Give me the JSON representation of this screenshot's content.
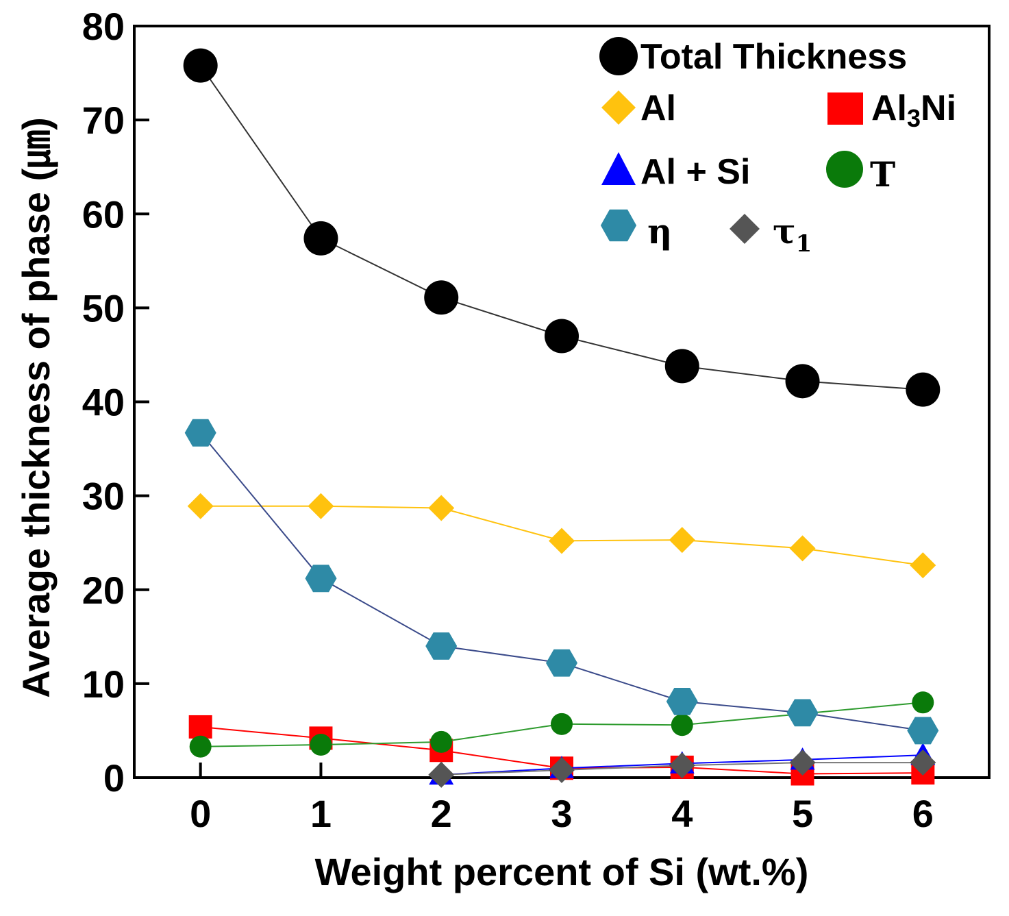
{
  "chart_data": {
    "type": "line",
    "title": "",
    "xlabel": "Weight percent of Si (wt.%)",
    "ylabel": "Average thickness of phase (㎛)",
    "xlim": [
      -0.55,
      6.55
    ],
    "ylim": [
      0,
      80
    ],
    "xticks": [
      0,
      1,
      2,
      3,
      4,
      5,
      6
    ],
    "yticks": [
      0,
      10,
      20,
      30,
      40,
      50,
      60,
      70,
      80
    ],
    "grid": false,
    "legend_position": "top-right",
    "series": [
      {
        "key": "total",
        "name": "Total Thickness",
        "marker": "circle",
        "color": "#000000",
        "line_color": "#333333",
        "x": [
          0,
          1,
          2,
          3,
          4,
          5,
          6
        ],
        "values": [
          75.8,
          57.4,
          51.1,
          47.0,
          43.8,
          42.2,
          41.3
        ]
      },
      {
        "key": "al",
        "name": "Al",
        "marker": "diamond",
        "color": "#FFC20E",
        "line_color": "#FFC20E",
        "x": [
          0,
          1,
          2,
          3,
          4,
          5,
          6
        ],
        "values": [
          28.9,
          28.9,
          28.7,
          25.2,
          25.3,
          24.4,
          22.6
        ]
      },
      {
        "key": "al3ni",
        "name": "Al",
        "name_sub": "3",
        "name_suffix": "Ni",
        "marker": "square",
        "color": "#FF0000",
        "line_color": "#FF0000",
        "x": [
          0,
          1,
          2,
          3,
          4,
          5,
          6
        ],
        "values": [
          5.4,
          4.2,
          2.9,
          1.0,
          1.1,
          0.4,
          0.5
        ]
      },
      {
        "key": "alsi",
        "name": "Al + Si",
        "marker": "triangle",
        "color": "#0000FF",
        "line_color": "#0000FF",
        "x": [
          2,
          3,
          4,
          5,
          6
        ],
        "values": [
          0.3,
          1.0,
          1.5,
          1.9,
          2.4
        ]
      },
      {
        "key": "T",
        "name": "T",
        "marker": "circle-small",
        "color": "#0A7A0A",
        "line_color": "#2E9B2E",
        "x": [
          0,
          1,
          2,
          3,
          4,
          5,
          6
        ],
        "values": [
          3.3,
          3.5,
          3.8,
          5.7,
          5.6,
          6.8,
          8.0
        ]
      },
      {
        "key": "eta",
        "name": "η",
        "marker": "hexagon",
        "color": "#2E8AA6",
        "line_color": "#3A4A8A",
        "x": [
          0,
          1,
          2,
          3,
          4,
          5,
          6
        ],
        "values": [
          36.7,
          21.2,
          14.0,
          12.2,
          8.1,
          6.9,
          5.0
        ]
      },
      {
        "key": "tau1",
        "name": "τ",
        "name_sub": "1",
        "marker": "diamond",
        "color": "#555555",
        "line_color": "#777777",
        "x": [
          2,
          3,
          4,
          5,
          6
        ],
        "values": [
          0.3,
          0.8,
          1.3,
          1.6,
          1.6
        ]
      }
    ]
  }
}
